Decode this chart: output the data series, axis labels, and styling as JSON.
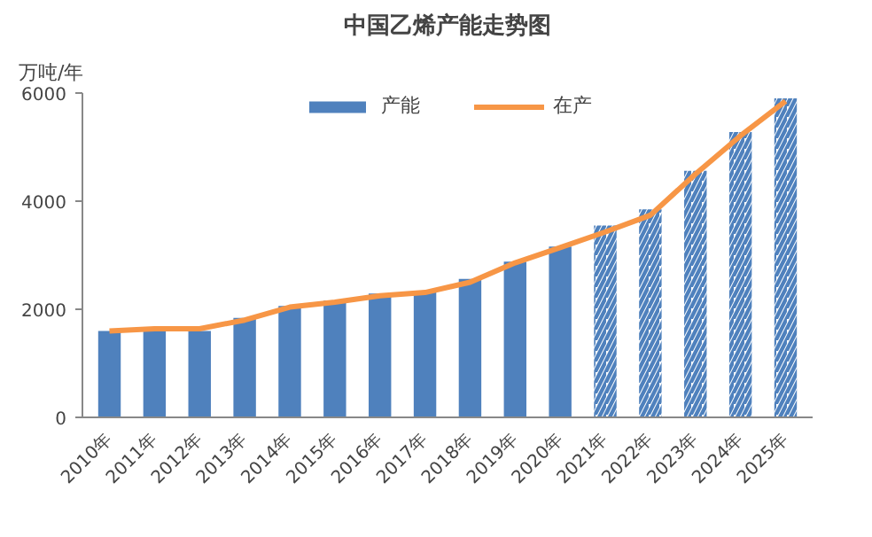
{
  "chart_data": {
    "type": "bar",
    "title": "中国乙烯产能走势图",
    "ylabel": "万吨/年",
    "categories": [
      "2010年",
      "2011年",
      "2012年",
      "2013年",
      "2014年",
      "2015年",
      "2016年",
      "2017年",
      "2018年",
      "2019年",
      "2020年",
      "2021年",
      "2022年",
      "2023年",
      "2024年",
      "2025年"
    ],
    "series": [
      {
        "name": "产能",
        "color": "#4f81bd",
        "values": [
          1600,
          1600,
          1600,
          1840,
          2060,
          2160,
          2290,
          2330,
          2560,
          2880,
          3160,
          null,
          null,
          null,
          null,
          null
        ]
      },
      {
        "color": "#4f81bd",
        "line_style": "dashed",
        "values": [
          null,
          null,
          null,
          null,
          null,
          null,
          null,
          null,
          null,
          null,
          null,
          3550,
          3850,
          4560,
          5280,
          5900
        ]
      },
      {
        "name": "在产",
        "type": "line",
        "color": "#f79646",
        "values": [
          1600,
          1640,
          1640,
          1800,
          2040,
          2130,
          2250,
          2310,
          2500,
          2860,
          3140,
          3430,
          3740,
          4500,
          5210,
          5850
        ]
      }
    ],
    "ylim": [
      0,
      6000
    ],
    "yticks": [
      0,
      2000,
      4000,
      6000
    ],
    "grid": false,
    "legend": "top"
  }
}
